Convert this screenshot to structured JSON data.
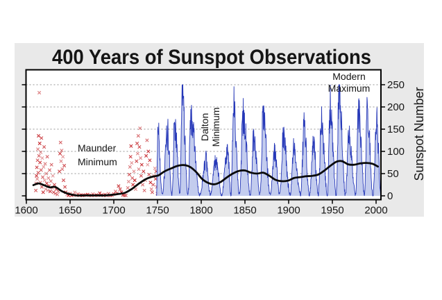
{
  "chart_data": {
    "type": "line",
    "title": "400 Years of Sunspot Observations",
    "ylabel_right": "Sunspot Number",
    "xlabel": "",
    "x_ticks": [
      1600,
      1650,
      1700,
      1750,
      1800,
      1850,
      1900,
      1950,
      2000
    ],
    "y_ticks": [
      0,
      50,
      100,
      150,
      200,
      250
    ],
    "x_range": [
      1600,
      2006
    ],
    "y_range": [
      0,
      285
    ],
    "grid": "dashed horizontal at 50..250",
    "legend_position": "none",
    "annotations": {
      "maunder": {
        "line1": "Maunder",
        "line2": "Minimum"
      },
      "dalton": {
        "line1": "Dalton",
        "line2": "Minimum",
        "rotation": -90
      },
      "modern": {
        "line1": "Modern",
        "line2": "Maximum"
      }
    },
    "colors": {
      "panel_bg": "#e9e9e9",
      "plot_bg": "#ffffff",
      "frame": "#000000",
      "grid": "#949494",
      "red_scatter": "#c5262b",
      "blue_line": "#2638b8",
      "blue_fill": "#bcc7ec",
      "smoothed_line": "#0a0a0a"
    },
    "red_scatter": {
      "label": "sporadic early observations (x markers, 1610-1750)",
      "points": [
        [
          1610.8,
          12
        ],
        [
          1611.2,
          28
        ],
        [
          1611.6,
          45
        ],
        [
          1612.0,
          64
        ],
        [
          1612.4,
          38
        ],
        [
          1612.8,
          80
        ],
        [
          1613.2,
          105
        ],
        [
          1613.6,
          52
        ],
        [
          1614.0,
          135
        ],
        [
          1614.4,
          90
        ],
        [
          1614.8,
          232
        ],
        [
          1615.2,
          118
        ],
        [
          1615.6,
          75
        ],
        [
          1616.0,
          30
        ],
        [
          1616.4,
          98
        ],
        [
          1616.8,
          58
        ],
        [
          1617.2,
          130
        ],
        [
          1617.7,
          20
        ],
        [
          1618.2,
          85
        ],
        [
          1618.7,
          42
        ],
        [
          1619.2,
          8
        ],
        [
          1619.7,
          65
        ],
        [
          1620.3,
          110
        ],
        [
          1620.9,
          35
        ],
        [
          1621.5,
          72
        ],
        [
          1622.1,
          15
        ],
        [
          1622.7,
          50
        ],
        [
          1623.3,
          28
        ],
        [
          1623.9,
          88
        ],
        [
          1624.5,
          12
        ],
        [
          1625.2,
          40
        ],
        [
          1625.9,
          22
        ],
        [
          1626.6,
          58
        ],
        [
          1627.3,
          10
        ],
        [
          1628.0,
          33
        ],
        [
          1628.7,
          70
        ],
        [
          1629.5,
          18
        ],
        [
          1630.3,
          45
        ],
        [
          1631.2,
          8
        ],
        [
          1632.1,
          25
        ],
        [
          1633.1,
          5
        ],
        [
          1634.2,
          15
        ],
        [
          1635.4,
          3
        ],
        [
          1636.6,
          10
        ],
        [
          1637.8,
          55
        ],
        [
          1638.5,
          95
        ],
        [
          1639.1,
          120
        ],
        [
          1639.7,
          78
        ],
        [
          1640.4,
          102
        ],
        [
          1641.1,
          60
        ],
        [
          1641.8,
          88
        ],
        [
          1642.5,
          35
        ],
        [
          1643.3,
          68
        ],
        [
          1644.1,
          20
        ],
        [
          1645.0,
          8
        ],
        [
          1646.5,
          3
        ],
        [
          1648.2,
          1
        ],
        [
          1650.0,
          5
        ],
        [
          1651.8,
          1
        ],
        [
          1653.6,
          2
        ],
        [
          1655.4,
          8
        ],
        [
          1657.2,
          1
        ],
        [
          1659.0,
          4
        ],
        [
          1660.8,
          1
        ],
        [
          1662.6,
          2
        ],
        [
          1664.4,
          1
        ],
        [
          1666.2,
          1
        ],
        [
          1668.0,
          2
        ],
        [
          1670.0,
          3
        ],
        [
          1672.0,
          1
        ],
        [
          1674.0,
          1
        ],
        [
          1676.0,
          4
        ],
        [
          1678.0,
          1
        ],
        [
          1680.0,
          2
        ],
        [
          1682.0,
          1
        ],
        [
          1684.0,
          6
        ],
        [
          1686.0,
          2
        ],
        [
          1688.0,
          1
        ],
        [
          1690.0,
          3
        ],
        [
          1692.0,
          1
        ],
        [
          1694.0,
          5
        ],
        [
          1696.0,
          1
        ],
        [
          1698.0,
          1
        ],
        [
          1700.0,
          4
        ],
        [
          1702.0,
          10
        ],
        [
          1703.8,
          6
        ],
        [
          1705.5,
          22
        ],
        [
          1707.2,
          15
        ],
        [
          1708.8,
          8
        ],
        [
          1710.4,
          2
        ],
        [
          1712.0,
          1
        ],
        [
          1713.8,
          1
        ],
        [
          1716.0,
          18
        ],
        [
          1717.0,
          32
        ],
        [
          1717.8,
          48
        ],
        [
          1718.5,
          65
        ],
        [
          1719.2,
          88
        ],
        [
          1719.8,
          112
        ],
        [
          1720.5,
          74
        ],
        [
          1721.2,
          40
        ],
        [
          1722.0,
          25
        ],
        [
          1723.0,
          55
        ],
        [
          1724.0,
          35
        ],
        [
          1725.0,
          15
        ],
        [
          1726.0,
          78
        ],
        [
          1726.7,
          118
        ],
        [
          1727.3,
          95
        ],
        [
          1728.0,
          135
        ],
        [
          1728.6,
          60
        ],
        [
          1729.3,
          110
        ],
        [
          1730.0,
          152
        ],
        [
          1730.6,
          85
        ],
        [
          1731.3,
          45
        ],
        [
          1732.0,
          70
        ],
        [
          1733.0,
          25
        ],
        [
          1734.0,
          55
        ],
        [
          1735.0,
          12
        ],
        [
          1736.0,
          35
        ],
        [
          1737.0,
          90
        ],
        [
          1738.0,
          125
        ],
        [
          1738.7,
          70
        ],
        [
          1739.5,
          100
        ],
        [
          1740.3,
          48
        ],
        [
          1741.2,
          80
        ],
        [
          1742.0,
          30
        ],
        [
          1743.0,
          15
        ],
        [
          1744.0,
          8
        ],
        [
          1745.0,
          25
        ],
        [
          1746.0,
          45
        ],
        [
          1747.0,
          62
        ],
        [
          1747.8,
          38
        ],
        [
          1748.5,
          55
        ],
        [
          1749.2,
          20
        ],
        [
          1749.8,
          5
        ]
      ]
    },
    "blue_series": {
      "label": "monthly sunspot number (1749-2005)",
      "start": 1749.0,
      "end": 2005.5,
      "cycle_minima_years": [
        1755.5,
        1766.5,
        1775.6,
        1784.8,
        1798.5,
        1810.5,
        1823.4,
        1834.0,
        1843.6,
        1856.1,
        1867.3,
        1879.0,
        1889.7,
        1901.8,
        1913.7,
        1923.7,
        1933.9,
        1944.3,
        1954.4,
        1964.9,
        1976.6,
        1986.9,
        1996.5
      ],
      "cycle_peaks": [
        [
          1750.3,
          155
        ],
        [
          1761.5,
          140
        ],
        [
          1769.8,
          165
        ],
        [
          1778.4,
          238
        ],
        [
          1788.2,
          172
        ],
        [
          1805.2,
          78
        ],
        [
          1816.5,
          82
        ],
        [
          1829.9,
          108
        ],
        [
          1837.3,
          205
        ],
        [
          1848.2,
          180
        ],
        [
          1860.2,
          130
        ],
        [
          1870.7,
          176
        ],
        [
          1883.9,
          98
        ],
        [
          1894.0,
          129
        ],
        [
          1905.6,
          108
        ],
        [
          1917.7,
          156
        ],
        [
          1928.4,
          114
        ],
        [
          1937.5,
          165
        ],
        [
          1947.6,
          200
        ],
        [
          1957.9,
          240
        ],
        [
          1969.0,
          135
        ],
        [
          1979.9,
          188
        ],
        [
          1989.7,
          196
        ],
        [
          2000.4,
          168
        ]
      ]
    },
    "smoothed_series": {
      "label": "long-term smoothed sunspot number (black curve)",
      "points": [
        [
          1608,
          24
        ],
        [
          1614,
          28
        ],
        [
          1620,
          24
        ],
        [
          1627,
          19
        ],
        [
          1633,
          20
        ],
        [
          1641,
          10
        ],
        [
          1649,
          4
        ],
        [
          1657,
          1
        ],
        [
          1665,
          1
        ],
        [
          1673,
          1
        ],
        [
          1681,
          1
        ],
        [
          1689,
          1
        ],
        [
          1697,
          2
        ],
        [
          1705,
          4
        ],
        [
          1713,
          7
        ],
        [
          1721,
          16
        ],
        [
          1729,
          28
        ],
        [
          1737,
          38
        ],
        [
          1744,
          43
        ],
        [
          1751,
          46
        ],
        [
          1758,
          55
        ],
        [
          1766,
          62
        ],
        [
          1774,
          68
        ],
        [
          1781,
          69
        ],
        [
          1788,
          64
        ],
        [
          1795,
          52
        ],
        [
          1801,
          38
        ],
        [
          1808,
          29
        ],
        [
          1815,
          26
        ],
        [
          1822,
          31
        ],
        [
          1829,
          41
        ],
        [
          1836,
          50
        ],
        [
          1843,
          56
        ],
        [
          1850,
          57
        ],
        [
          1857,
          52
        ],
        [
          1864,
          50
        ],
        [
          1871,
          52
        ],
        [
          1878,
          45
        ],
        [
          1885,
          36
        ],
        [
          1892,
          33
        ],
        [
          1899,
          34
        ],
        [
          1906,
          40
        ],
        [
          1913,
          42
        ],
        [
          1920,
          44
        ],
        [
          1927,
          45
        ],
        [
          1934,
          48
        ],
        [
          1941,
          57
        ],
        [
          1948,
          68
        ],
        [
          1955,
          77
        ],
        [
          1961,
          78
        ],
        [
          1968,
          71
        ],
        [
          1975,
          70
        ],
        [
          1982,
          73
        ],
        [
          1989,
          74
        ],
        [
          1996,
          72
        ],
        [
          2002,
          66
        ]
      ]
    }
  }
}
